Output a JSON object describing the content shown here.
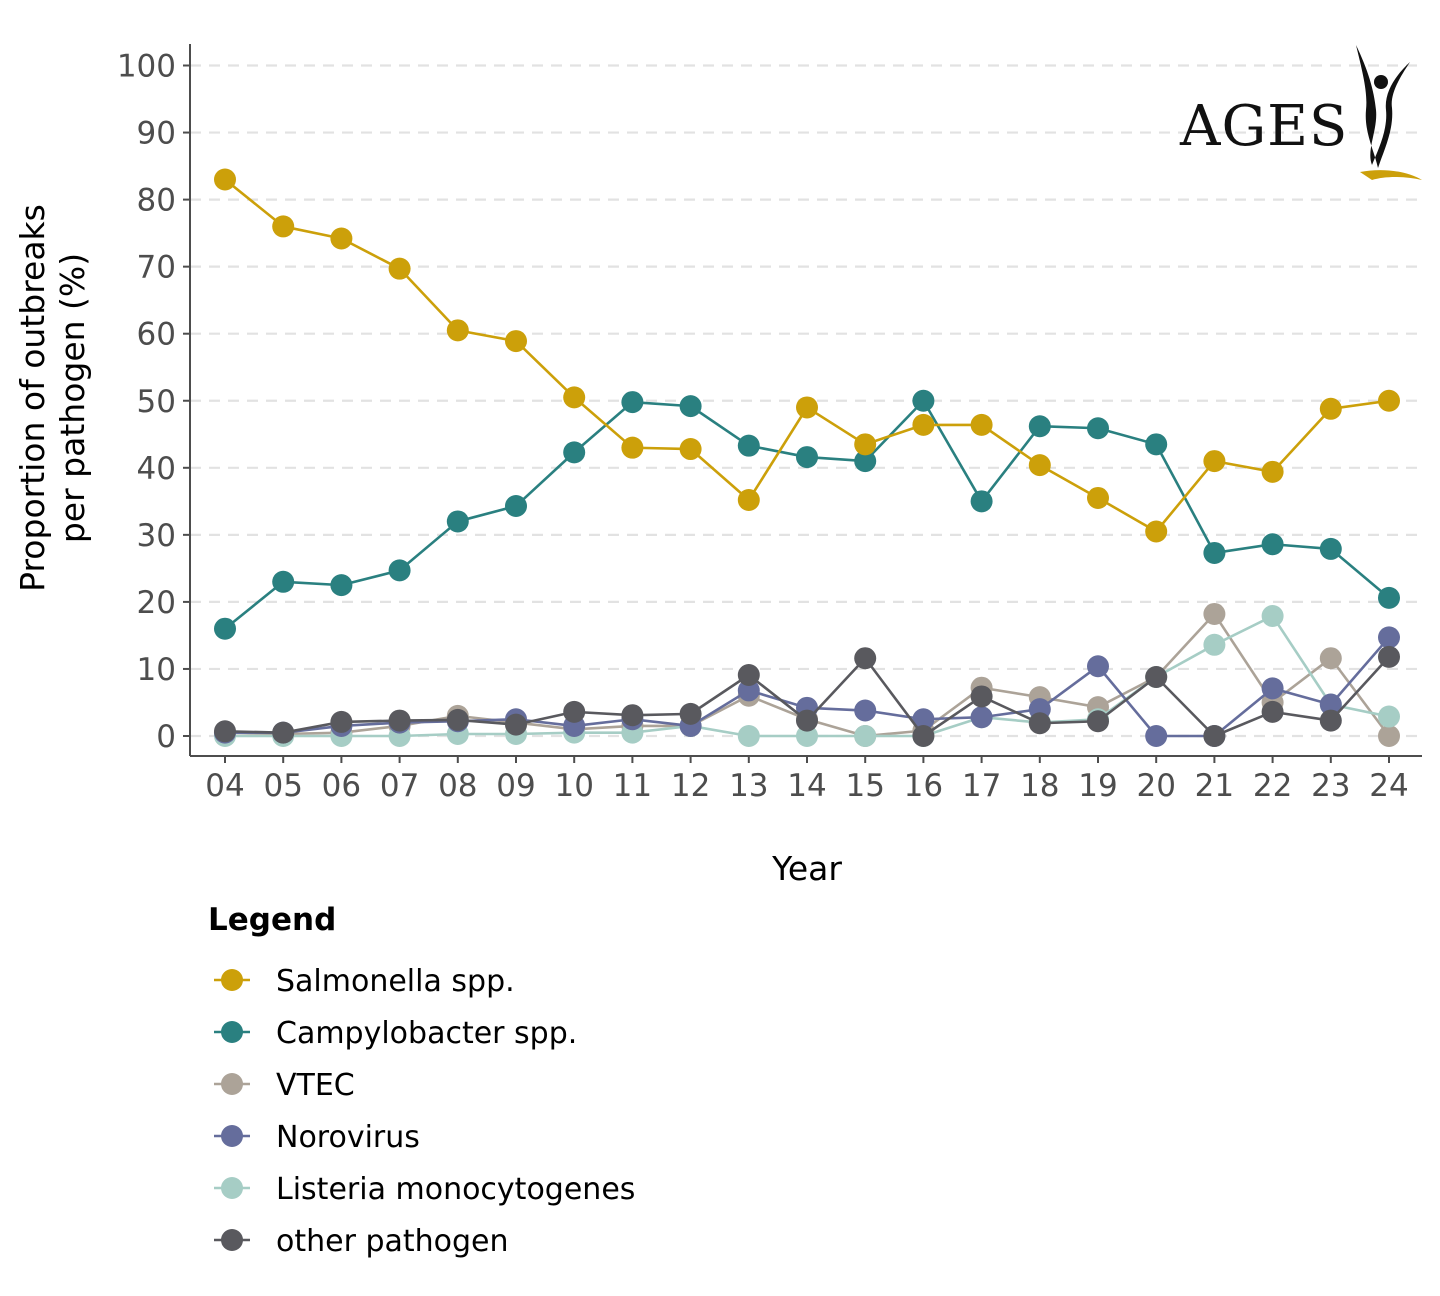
{
  "chart_data": {
    "type": "line",
    "xlabel": "Year",
    "ylabel_lines": [
      "Proportion of outbreaks",
      "per pathogen (%)"
    ],
    "x": [
      "04",
      "05",
      "06",
      "07",
      "08",
      "09",
      "10",
      "11",
      "12",
      "13",
      "14",
      "15",
      "16",
      "17",
      "18",
      "19",
      "20",
      "21",
      "22",
      "23",
      "24"
    ],
    "ylim": [
      0,
      100
    ],
    "yticks": [
      0,
      10,
      20,
      30,
      40,
      50,
      60,
      70,
      80,
      90,
      100
    ],
    "grid": "horizontal dashed",
    "legend": {
      "title": "Legend",
      "placement": "bottom-left"
    },
    "series": [
      {
        "name": "VTEC",
        "color": "#aca398",
        "values": [
          0.5,
          0.3,
          0.5,
          1.5,
          3.0,
          2.0,
          1.0,
          1.5,
          1.5,
          6.0,
          2.5,
          0.0,
          0.8,
          7.2,
          5.8,
          4.3,
          8.8,
          18.2,
          5.0,
          11.6,
          0.0
        ]
      },
      {
        "name": "Listeria monocytogenes",
        "color": "#a6cdc5",
        "values": [
          0.0,
          0.0,
          0.0,
          0.0,
          0.3,
          0.3,
          0.5,
          0.5,
          1.5,
          0.0,
          0.0,
          0.0,
          0.0,
          2.8,
          2.0,
          2.5,
          8.8,
          13.6,
          17.9,
          4.7,
          2.9
        ]
      },
      {
        "name": "Norovirus",
        "color": "#656d9c",
        "values": [
          0.5,
          0.5,
          1.5,
          2.0,
          2.2,
          2.5,
          1.5,
          2.5,
          1.5,
          6.8,
          4.2,
          3.8,
          2.5,
          2.8,
          4.0,
          10.4,
          0.0,
          0.0,
          7.1,
          4.7,
          14.7
        ]
      },
      {
        "name": "other pathogen",
        "color": "#59595e",
        "values": [
          0.7,
          0.5,
          2.1,
          2.3,
          2.4,
          1.7,
          3.6,
          3.1,
          3.3,
          9.1,
          2.3,
          11.6,
          0.0,
          5.9,
          1.9,
          2.2,
          8.8,
          0.0,
          3.6,
          2.3,
          11.8
        ]
      },
      {
        "name": "Campylobacter spp.",
        "color": "#2a8080",
        "values": [
          16.0,
          23.0,
          22.5,
          24.7,
          32.0,
          34.3,
          42.3,
          49.8,
          49.2,
          43.3,
          41.6,
          41.0,
          50.0,
          35.0,
          46.2,
          45.9,
          43.5,
          27.3,
          28.6,
          27.9,
          20.6
        ]
      },
      {
        "name": "Salmonella spp.",
        "color": "#cca00a",
        "values": [
          83.0,
          76.0,
          74.2,
          69.7,
          60.5,
          58.9,
          50.5,
          43.0,
          42.8,
          35.2,
          49.0,
          43.5,
          46.4,
          46.4,
          40.4,
          35.5,
          30.5,
          41.0,
          39.4,
          48.8,
          50.0
        ]
      }
    ],
    "legend_order": [
      "Salmonella spp.",
      "Campylobacter spp.",
      "VTEC",
      "Norovirus",
      "Listeria monocytogenes",
      "other pathogen"
    ]
  },
  "logo": {
    "text": "AGES",
    "accent_color": "#cca00a"
  }
}
